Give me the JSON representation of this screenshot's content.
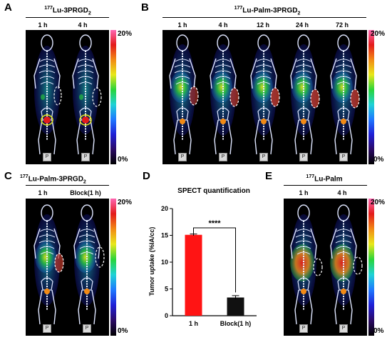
{
  "colors": {
    "colorbar_stops": [
      "#000000",
      "#2b0a66",
      "#1f1fd6",
      "#1e78ff",
      "#1fd2d6",
      "#2ad43a",
      "#e8e81a",
      "#f28a14",
      "#e31b1b",
      "#ff66b2"
    ],
    "bar_red": "#ff1414",
    "bar_black": "#111111"
  },
  "panels": {
    "A": {
      "label": "A",
      "title_main": "Lu-3PRGD",
      "title_sup": "177",
      "title_sub": "2",
      "times": [
        "1 h",
        "4 h"
      ],
      "cmax": "20%",
      "cmin": "0%",
      "badge": "P"
    },
    "B": {
      "label": "B",
      "title_main": "Lu-Palm-3PRGD",
      "title_sup": "177",
      "title_sub": "2",
      "times": [
        "1 h",
        "4 h",
        "12 h",
        "24 h",
        "72 h"
      ],
      "cmax": "20%",
      "cmin": "0%",
      "badge": "P"
    },
    "C": {
      "label": "C",
      "title_main": "Lu-Palm-3PRGD",
      "title_sup": "177",
      "title_sub": "2",
      "times": [
        "1 h",
        "Block(1 h)"
      ],
      "cmax": "20%",
      "cmin": "0%",
      "badge": "P"
    },
    "D": {
      "label": "D"
    },
    "E": {
      "label": "E",
      "title_main": "Lu-Palm",
      "title_sup": "177",
      "times": [
        "1 h",
        "4 h"
      ],
      "cmax": "20%",
      "cmin": "0%",
      "badge": "P"
    }
  },
  "chart_data": {
    "type": "bar",
    "title": "SPECT quantification",
    "ylabel": "Tumor uptake (%IA/cc)",
    "xlabel": "",
    "categories": [
      "1 h",
      "Block(1 h)"
    ],
    "values": [
      15.1,
      3.4
    ],
    "errors": [
      0.15,
      0.35
    ],
    "ylim": [
      0,
      20
    ],
    "yticks": [
      "0",
      "5",
      "10",
      "15",
      "20"
    ],
    "significance": "****",
    "grid": false
  }
}
